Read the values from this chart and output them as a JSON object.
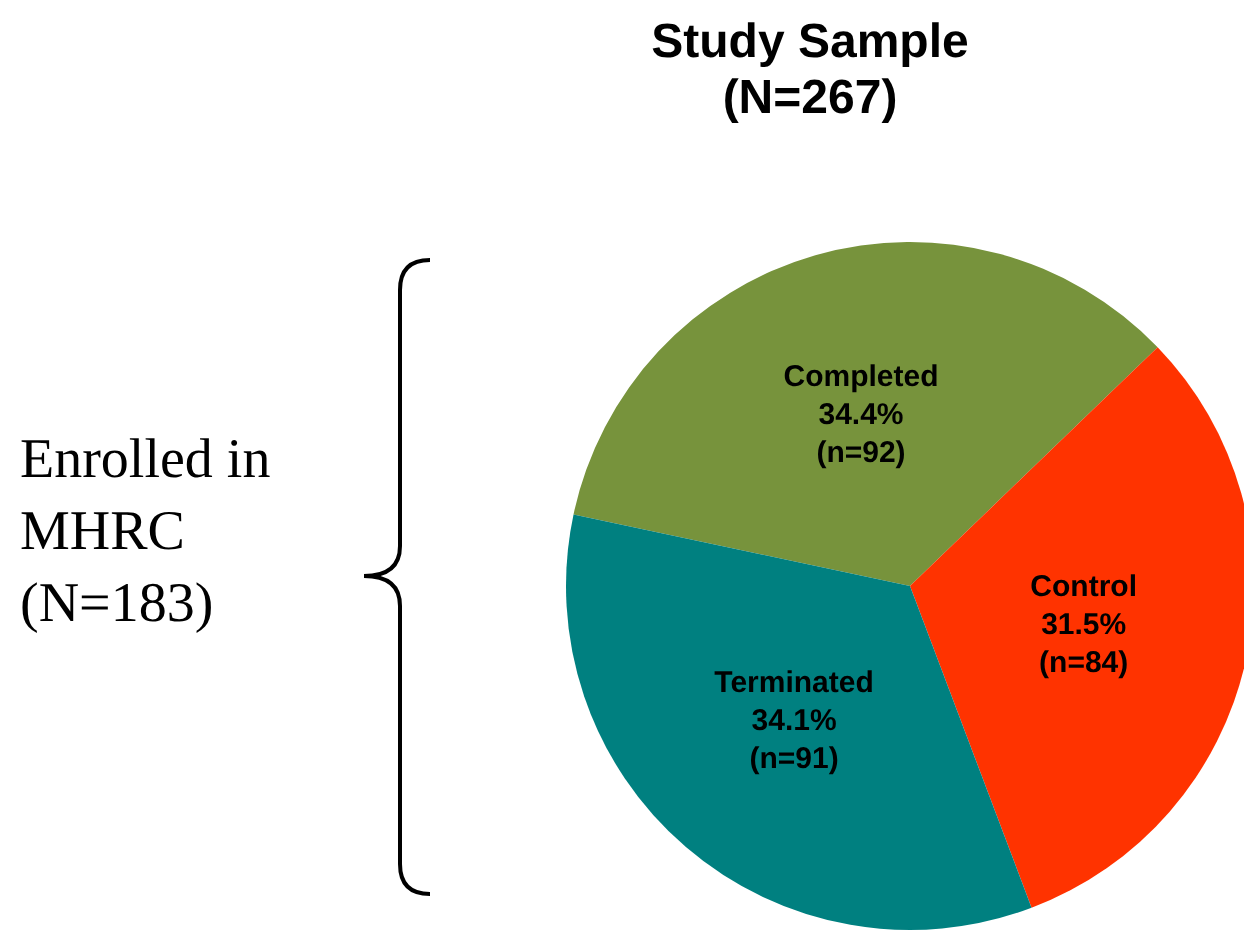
{
  "chart_data": {
    "type": "pie",
    "title": "Study Sample",
    "subtitle": "(N=267)",
    "categories": [
      "Completed",
      "Control",
      "Terminated"
    ],
    "values": [
      92,
      84,
      91
    ],
    "colors": [
      "#77933c",
      "#ff3300",
      "#008080"
    ],
    "value_labels": [
      "34.4%\n(n=92)",
      "31.5%\n(n=84)",
      "34.1%\n(n=91)"
    ],
    "annotations": [
      "Enrolled in\nMHRC\n(N=183)"
    ],
    "legend": false
  }
}
